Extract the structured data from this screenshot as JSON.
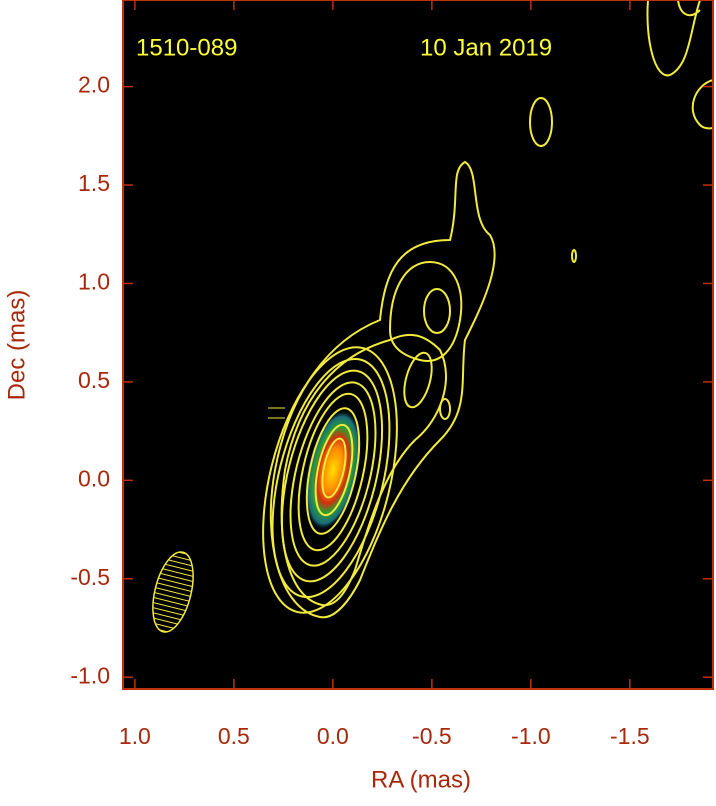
{
  "chart_data": {
    "type": "contour",
    "source": "1510-089",
    "date": "10 Jan 2019",
    "x_label": "RA (mas)",
    "y_label": "Dec (mas)",
    "xlim": [
      1.06,
      -1.92
    ],
    "xticks": [
      {
        "value": 1,
        "label": "1.0"
      },
      0.5,
      {
        "value": 0,
        "label": "0.0"
      },
      -0.5,
      {
        "value": -1,
        "label": "-1.0"
      },
      -1.5
    ],
    "ylim": [
      -1.06,
      2.44
    ],
    "yticks": [
      {
        "value": -1,
        "label": "-1.0"
      },
      -0.5,
      {
        "value": 0,
        "label": "0.0"
      },
      0.5,
      {
        "value": 1,
        "label": "1.0"
      },
      1.5,
      {
        "value": 2,
        "label": "2.0"
      }
    ]
  }
}
